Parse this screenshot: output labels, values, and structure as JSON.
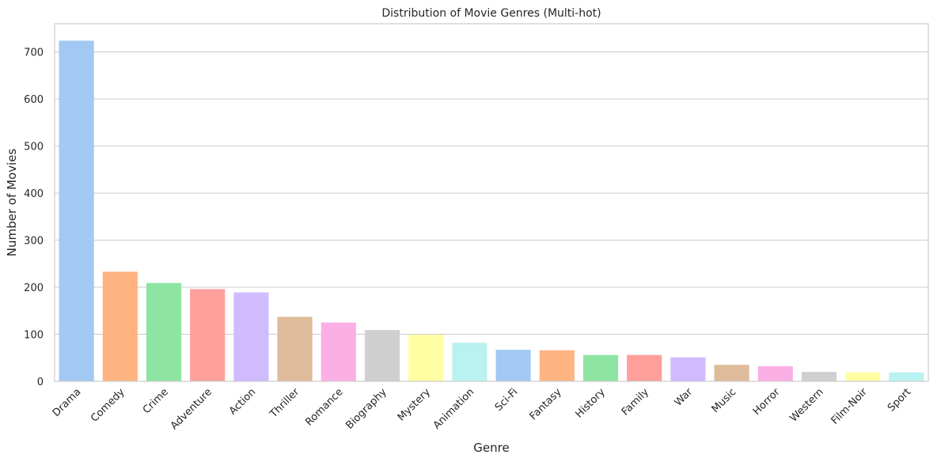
{
  "chart_data": {
    "type": "bar",
    "title": "Distribution of Movie Genres (Multi-hot)",
    "xlabel": "Genre",
    "ylabel": "Number of Movies",
    "ylim": [
      0,
      760
    ],
    "yticks": [
      0,
      100,
      200,
      300,
      400,
      500,
      600,
      700
    ],
    "grid": "horizontal",
    "categories": [
      "Drama",
      "Comedy",
      "Crime",
      "Adventure",
      "Action",
      "Thriller",
      "Romance",
      "Biography",
      "Mystery",
      "Animation",
      "Sci-Fi",
      "Fantasy",
      "History",
      "Family",
      "War",
      "Music",
      "Horror",
      "Western",
      "Film-Noir",
      "Sport"
    ],
    "values": [
      724,
      233,
      209,
      196,
      189,
      137,
      125,
      109,
      99,
      82,
      67,
      66,
      56,
      56,
      51,
      35,
      32,
      20,
      19,
      19
    ],
    "colors": [
      "#a1c9f4",
      "#ffb482",
      "#8de5a1",
      "#ff9f9b",
      "#d0bbff",
      "#debb9b",
      "#fab0e4",
      "#cfcfcf",
      "#fffea3",
      "#b9f2f0",
      "#a1c9f4",
      "#ffb482",
      "#8de5a1",
      "#ff9f9b",
      "#d0bbff",
      "#debb9b",
      "#fab0e4",
      "#cfcfcf",
      "#fffea3",
      "#b9f2f0"
    ]
  }
}
